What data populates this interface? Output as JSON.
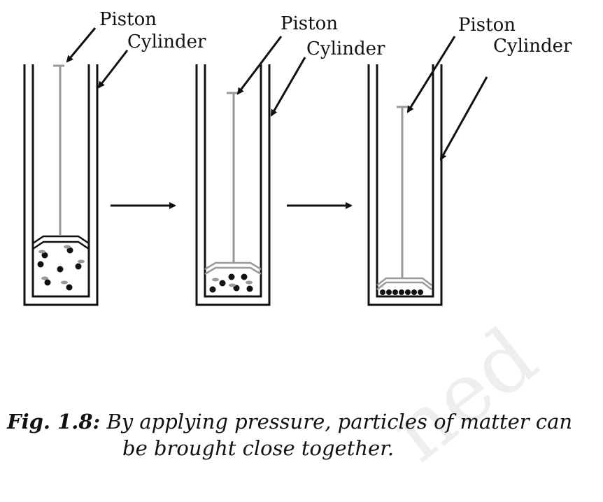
{
  "labels": {
    "piston": "Piston",
    "cylinder": "Cylinder"
  },
  "caption": {
    "fig_label": "Fig. 1.8:",
    "line1": "By applying pressure, particles of matter can",
    "line2": "be brought close together."
  },
  "watermark": "ned",
  "colors": {
    "outline": "#111111",
    "piston": "#999999",
    "particle": "#111111",
    "watermark": "#eeeeee"
  }
}
